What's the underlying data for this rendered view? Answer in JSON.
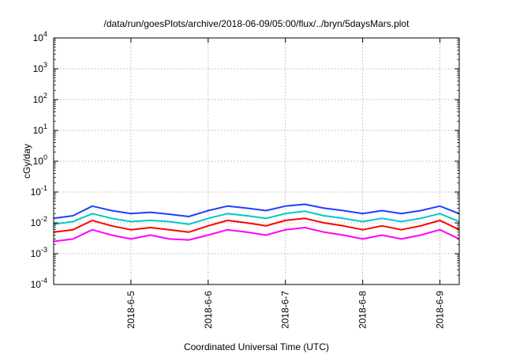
{
  "chart_data": {
    "type": "line",
    "title": "/data/run/goesPlots/archive/2018-06-09/05:00/flux/../bryn/5daysMars.plot",
    "xlabel": "Coordinated Universal Time (UTC)",
    "ylabel": "cGy/day",
    "yscale": "log",
    "ylim": [
      0.0001,
      10000
    ],
    "xlim": [
      "2018-06-04 00:00",
      "2018-06-09 06:00"
    ],
    "grid": true,
    "legend": "none",
    "y_ticks": [
      {
        "value": 0.0001,
        "base": "10",
        "exp": "-4"
      },
      {
        "value": 0.001,
        "base": "10",
        "exp": "-3"
      },
      {
        "value": 0.01,
        "base": "10",
        "exp": "-2"
      },
      {
        "value": 0.1,
        "base": "10",
        "exp": "-1"
      },
      {
        "value": 1,
        "base": "10",
        "exp": "0"
      },
      {
        "value": 10,
        "base": "10",
        "exp": "1"
      },
      {
        "value": 100,
        "base": "10",
        "exp": "2"
      },
      {
        "value": 1000,
        "base": "10",
        "exp": "3"
      },
      {
        "value": 10000,
        "base": "10",
        "exp": "4"
      }
    ],
    "x_ticks": [
      {
        "value": "2018-06-05 00:00",
        "label": "2018-6-5"
      },
      {
        "value": "2018-06-06 00:00",
        "label": "2018-6-6"
      },
      {
        "value": "2018-06-07 00:00",
        "label": "2018-6-7"
      },
      {
        "value": "2018-06-08 00:00",
        "label": "2018-6-8"
      },
      {
        "value": "2018-06-09 00:00",
        "label": "2018-6-9"
      }
    ],
    "series": [
      {
        "color": "#ff00ff",
        "times": [
          "2018-06-04 00:00",
          "2018-06-04 06:00",
          "2018-06-04 12:00",
          "2018-06-04 18:00",
          "2018-06-05 00:00",
          "2018-06-05 06:00",
          "2018-06-05 12:00",
          "2018-06-05 18:00",
          "2018-06-06 00:00",
          "2018-06-06 06:00",
          "2018-06-06 12:00",
          "2018-06-06 18:00",
          "2018-06-07 00:00",
          "2018-06-07 06:00",
          "2018-06-07 12:00",
          "2018-06-07 18:00",
          "2018-06-08 00:00",
          "2018-06-08 06:00",
          "2018-06-08 12:00",
          "2018-06-08 18:00",
          "2018-06-09 00:00",
          "2018-06-09 06:00"
        ],
        "values": [
          0.0025,
          0.003,
          0.006,
          0.004,
          0.003,
          0.004,
          0.003,
          0.0028,
          0.004,
          0.006,
          0.005,
          0.004,
          0.006,
          0.007,
          0.005,
          0.004,
          0.003,
          0.004,
          0.003,
          0.004,
          0.006,
          0.003
        ]
      },
      {
        "color": "#ff0000",
        "times": [
          "2018-06-04 00:00",
          "2018-06-04 06:00",
          "2018-06-04 12:00",
          "2018-06-04 18:00",
          "2018-06-05 00:00",
          "2018-06-05 06:00",
          "2018-06-05 12:00",
          "2018-06-05 18:00",
          "2018-06-06 00:00",
          "2018-06-06 06:00",
          "2018-06-06 12:00",
          "2018-06-06 18:00",
          "2018-06-07 00:00",
          "2018-06-07 06:00",
          "2018-06-07 12:00",
          "2018-06-07 18:00",
          "2018-06-08 00:00",
          "2018-06-08 06:00",
          "2018-06-08 12:00",
          "2018-06-08 18:00",
          "2018-06-09 00:00",
          "2018-06-09 06:00"
        ],
        "values": [
          0.005,
          0.006,
          0.012,
          0.008,
          0.006,
          0.007,
          0.006,
          0.005,
          0.008,
          0.012,
          0.01,
          0.008,
          0.012,
          0.014,
          0.01,
          0.008,
          0.006,
          0.008,
          0.006,
          0.008,
          0.012,
          0.006
        ]
      },
      {
        "color": "#00c8c8",
        "times": [
          "2018-06-04 00:00",
          "2018-06-04 06:00",
          "2018-06-04 12:00",
          "2018-06-04 18:00",
          "2018-06-05 00:00",
          "2018-06-05 06:00",
          "2018-06-05 12:00",
          "2018-06-05 18:00",
          "2018-06-06 00:00",
          "2018-06-06 06:00",
          "2018-06-06 12:00",
          "2018-06-06 18:00",
          "2018-06-07 00:00",
          "2018-06-07 06:00",
          "2018-06-07 12:00",
          "2018-06-07 18:00",
          "2018-06-08 00:00",
          "2018-06-08 06:00",
          "2018-06-08 12:00",
          "2018-06-08 18:00",
          "2018-06-09 00:00",
          "2018-06-09 06:00"
        ],
        "values": [
          0.009,
          0.011,
          0.02,
          0.014,
          0.011,
          0.012,
          0.011,
          0.009,
          0.014,
          0.02,
          0.017,
          0.014,
          0.02,
          0.024,
          0.017,
          0.014,
          0.011,
          0.014,
          0.011,
          0.014,
          0.02,
          0.011
        ]
      },
      {
        "color": "#1f3fff",
        "times": [
          "2018-06-04 00:00",
          "2018-06-04 06:00",
          "2018-06-04 12:00",
          "2018-06-04 18:00",
          "2018-06-05 00:00",
          "2018-06-05 06:00",
          "2018-06-05 12:00",
          "2018-06-05 18:00",
          "2018-06-06 00:00",
          "2018-06-06 06:00",
          "2018-06-06 12:00",
          "2018-06-06 18:00",
          "2018-06-07 00:00",
          "2018-06-07 06:00",
          "2018-06-07 12:00",
          "2018-06-07 18:00",
          "2018-06-08 00:00",
          "2018-06-08 06:00",
          "2018-06-08 12:00",
          "2018-06-08 18:00",
          "2018-06-09 00:00",
          "2018-06-09 06:00"
        ],
        "values": [
          0.014,
          0.017,
          0.035,
          0.025,
          0.02,
          0.022,
          0.019,
          0.016,
          0.025,
          0.035,
          0.03,
          0.025,
          0.035,
          0.04,
          0.03,
          0.025,
          0.02,
          0.025,
          0.02,
          0.025,
          0.035,
          0.02
        ]
      }
    ]
  }
}
